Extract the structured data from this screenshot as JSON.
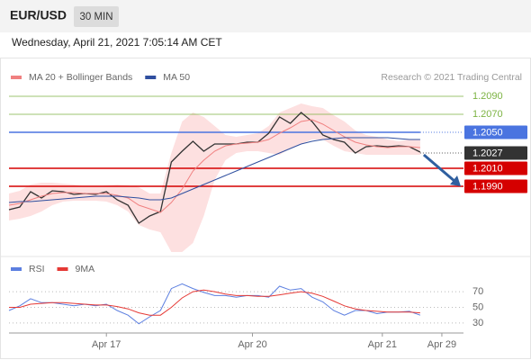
{
  "header": {
    "symbol": "EUR/USD",
    "interval": "30 MIN",
    "date": "Wednesday, April 21, 2021 7:05:14 AM CET"
  },
  "chart_data": [
    {
      "type": "line",
      "annotation": "Research © 2021 Trading Central",
      "xlim": [
        0,
        168
      ],
      "ylim": [
        1.1914,
        1.2112
      ],
      "x": [
        0,
        4,
        8,
        12,
        16,
        20,
        24,
        28,
        32,
        36,
        40,
        44,
        48,
        52,
        56,
        60,
        64,
        68,
        72,
        76,
        80,
        84,
        88,
        92,
        96,
        100,
        104,
        108,
        112,
        116,
        120,
        124,
        128,
        132,
        136,
        140,
        144,
        148,
        152
      ],
      "series": [
        {
          "color": "#333333",
          "values": [
            1.1964,
            1.1967,
            1.1984,
            1.1977,
            1.1985,
            1.1984,
            1.1981,
            1.1982,
            1.1981,
            1.1984,
            1.1975,
            1.1969,
            1.1949,
            1.1957,
            1.1962,
            1.2017,
            1.2029,
            1.204,
            1.2029,
            1.2037,
            1.2037,
            1.2037,
            1.2039,
            1.2039,
            1.2049,
            1.2067,
            1.206,
            1.2072,
            1.2062,
            1.2047,
            1.2042,
            1.2039,
            1.2027,
            1.2034,
            1.2035,
            1.2034,
            1.2035,
            1.2034,
            1.2028
          ]
        },
        {
          "name": "MA 20 + Bollinger Bands",
          "color": "#f08080",
          "values": [
            1.1969,
            1.1971,
            1.1975,
            1.1979,
            1.1982,
            1.1983,
            1.1983,
            1.1982,
            1.1982,
            1.1982,
            1.198,
            1.1977,
            1.1969,
            1.1965,
            1.1961,
            1.1972,
            1.1987,
            1.2007,
            1.2019,
            1.2029,
            1.2035,
            1.2037,
            1.2038,
            1.2039,
            1.2042,
            1.2049,
            1.2055,
            1.2062,
            1.2064,
            1.2059,
            1.2052,
            1.2045,
            1.2039,
            1.2036,
            1.2034,
            1.2033,
            1.2034,
            1.2034,
            1.2033
          ]
        },
        {
          "name": "MA 50",
          "color": "#2f4f9f",
          "values": [
            1.1972,
            1.1973,
            1.1973,
            1.1974,
            1.1975,
            1.1976,
            1.1977,
            1.1978,
            1.1979,
            1.1979,
            1.1979,
            1.1978,
            1.1977,
            1.1975,
            1.1975,
            1.1977,
            1.1982,
            1.1987,
            1.1992,
            1.1997,
            1.2002,
            1.2007,
            1.2012,
            1.2017,
            1.2022,
            1.2027,
            1.2032,
            1.2037,
            1.204,
            1.2042,
            1.2043,
            1.2044,
            1.2044,
            1.2044,
            1.2044,
            1.2044,
            1.2043,
            1.2042,
            1.2042
          ]
        }
      ],
      "bands": {
        "color": "#fde0e0",
        "upper": [
          1.1982,
          1.1985,
          1.1992,
          1.1994,
          1.1994,
          1.1993,
          1.1992,
          1.199,
          1.199,
          1.1991,
          1.1992,
          1.1991,
          1.1989,
          1.1982,
          1.1982,
          1.2027,
          1.2062,
          1.2072,
          1.2067,
          1.2057,
          1.2047,
          1.2045,
          1.2047,
          1.2049,
          1.2057,
          1.2072,
          1.2077,
          1.2082,
          1.2079,
          1.2077,
          1.2069,
          1.2062,
          1.2052,
          1.2047,
          1.2045,
          1.2042,
          1.204,
          1.2042,
          1.2042
        ],
        "lower": [
          1.1952,
          1.1954,
          1.1957,
          1.1962,
          1.1969,
          1.1973,
          1.1974,
          1.1974,
          1.1974,
          1.1973,
          1.1969,
          1.1962,
          1.1947,
          1.1942,
          1.1939,
          1.1917,
          1.1917,
          1.1927,
          1.1957,
          1.1997,
          1.2019,
          1.2027,
          1.2029,
          1.2029,
          1.2027,
          1.2025,
          1.2032,
          1.2037,
          1.2042,
          1.2042,
          1.2035,
          1.2029,
          1.2027,
          1.2025,
          1.2025,
          1.2025,
          1.2025,
          1.2025,
          1.2025
        ]
      },
      "levels": [
        {
          "value": 1.209,
          "label": "1.2090",
          "color": "#7cb342",
          "style": "text"
        },
        {
          "value": 1.207,
          "label": "1.2070",
          "color": "#7cb342",
          "style": "text"
        },
        {
          "value": 1.205,
          "label": "1.2050",
          "color": "#4a74e0",
          "style": "box"
        },
        {
          "value": 1.2027,
          "label": "1.2027",
          "color": "#333333",
          "style": "current"
        },
        {
          "value": 1.201,
          "label": "1.2010",
          "color": "#d50000",
          "style": "box"
        },
        {
          "value": 1.199,
          "label": "1.1990",
          "color": "#d50000",
          "style": "box"
        }
      ]
    },
    {
      "type": "line",
      "xlim": [
        0,
        168
      ],
      "ylim": [
        15,
        85
      ],
      "yticks": [
        70,
        50,
        30
      ],
      "grid": true,
      "xticks": [
        {
          "value": 36,
          "label": "Apr 17"
        },
        {
          "value": 90,
          "label": "Apr 20"
        },
        {
          "value": 138,
          "label": "Apr 21"
        },
        {
          "value": 160,
          "label": "Apr 29"
        }
      ],
      "x": [
        0,
        4,
        8,
        12,
        16,
        20,
        24,
        28,
        32,
        36,
        40,
        44,
        48,
        52,
        56,
        60,
        64,
        68,
        72,
        76,
        80,
        84,
        88,
        92,
        96,
        100,
        104,
        108,
        112,
        116,
        120,
        124,
        128,
        132,
        136,
        140,
        144,
        148,
        152
      ],
      "series": [
        {
          "name": "RSI",
          "color": "#5c7fe0",
          "values": [
            46,
            52,
            61,
            56,
            56,
            54,
            52,
            54,
            52,
            54,
            46,
            40,
            29,
            38,
            46,
            74,
            80,
            74,
            69,
            65,
            65,
            63,
            65,
            65,
            63,
            77,
            72,
            74,
            63,
            57,
            46,
            40,
            46,
            46,
            42,
            44,
            44,
            45,
            40
          ]
        },
        {
          "name": "9MA",
          "color": "#e53935",
          "values": [
            50,
            50,
            54,
            55,
            56,
            56,
            55,
            54,
            53,
            53,
            51,
            48,
            43,
            40,
            40,
            50,
            62,
            70,
            72,
            70,
            67,
            65,
            65,
            64,
            64,
            66,
            68,
            70,
            68,
            64,
            58,
            52,
            48,
            46,
            45,
            44,
            44,
            44,
            43
          ]
        }
      ]
    }
  ]
}
